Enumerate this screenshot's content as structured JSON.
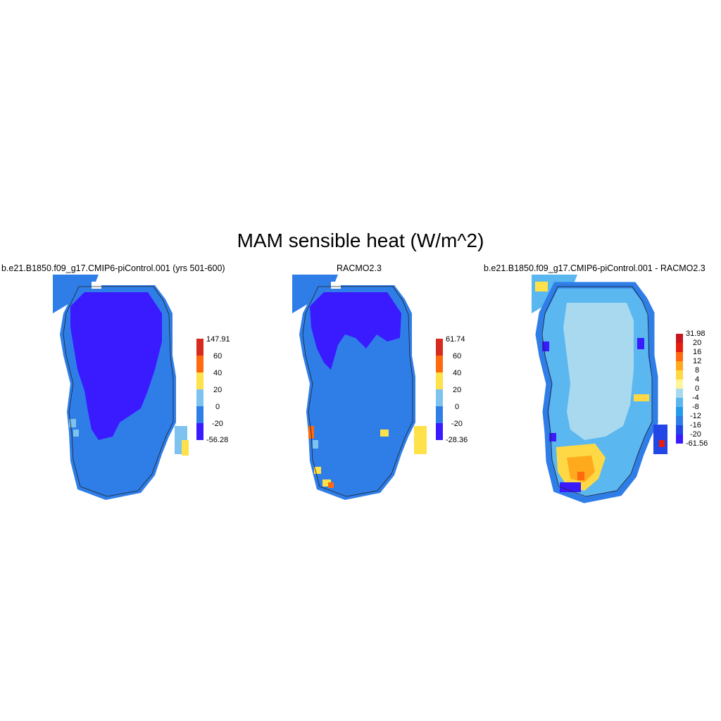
{
  "figure": {
    "title": "MAM sensible heat (W/m^2)"
  },
  "palettes": {
    "abs": [
      "#3a1bff",
      "#2f7ee8",
      "#7ec2ef",
      "#ffe14a",
      "#ff6a10",
      "#d62b1e"
    ],
    "diff": [
      "#3a1bff",
      "#2346e6",
      "#2f7ee8",
      "#249de9",
      "#5ab7f0",
      "#a9d9ee",
      "#fff49a",
      "#ffd945",
      "#ffaa1c",
      "#ff6a10",
      "#e81e0c",
      "#c8161e"
    ]
  },
  "panels": [
    {
      "id": "model",
      "title": "b.e21.B1850.f09_g17.CMIP6-piControl.001 (yrs 501-600)",
      "colorbar": {
        "labels": [
          "147.91",
          "60",
          "40",
          "20",
          "0",
          "-20",
          "-56.28"
        ],
        "colors": [
          "#3a1bff",
          "#2f7ee8",
          "#7ec2ef",
          "#ffe14a",
          "#ff6a10",
          "#d62b1e"
        ]
      }
    },
    {
      "id": "obs",
      "title": "RACMO2.3",
      "colorbar": {
        "labels": [
          "61.74",
          "60",
          "40",
          "20",
          "0",
          "-20",
          "-28.36"
        ],
        "colors": [
          "#3a1bff",
          "#2f7ee8",
          "#7ec2ef",
          "#ffe14a",
          "#ff6a10",
          "#d62b1e"
        ]
      }
    },
    {
      "id": "diff",
      "title": "b.e21.B1850.f09_g17.CMIP6-piControl.001 - RACMO2.3",
      "colorbar": {
        "labels": [
          "31.98",
          "20",
          "16",
          "12",
          "8",
          "4",
          "0",
          "-4",
          "-8",
          "-12",
          "-16",
          "-20",
          "-61.56"
        ],
        "colors": [
          "#3a1bff",
          "#2346e6",
          "#2f7ee8",
          "#249de9",
          "#5ab7f0",
          "#a9d9ee",
          "#fff49a",
          "#ffd945",
          "#ffaa1c",
          "#ff6a10",
          "#e81e0c",
          "#c8161e"
        ]
      }
    }
  ]
}
